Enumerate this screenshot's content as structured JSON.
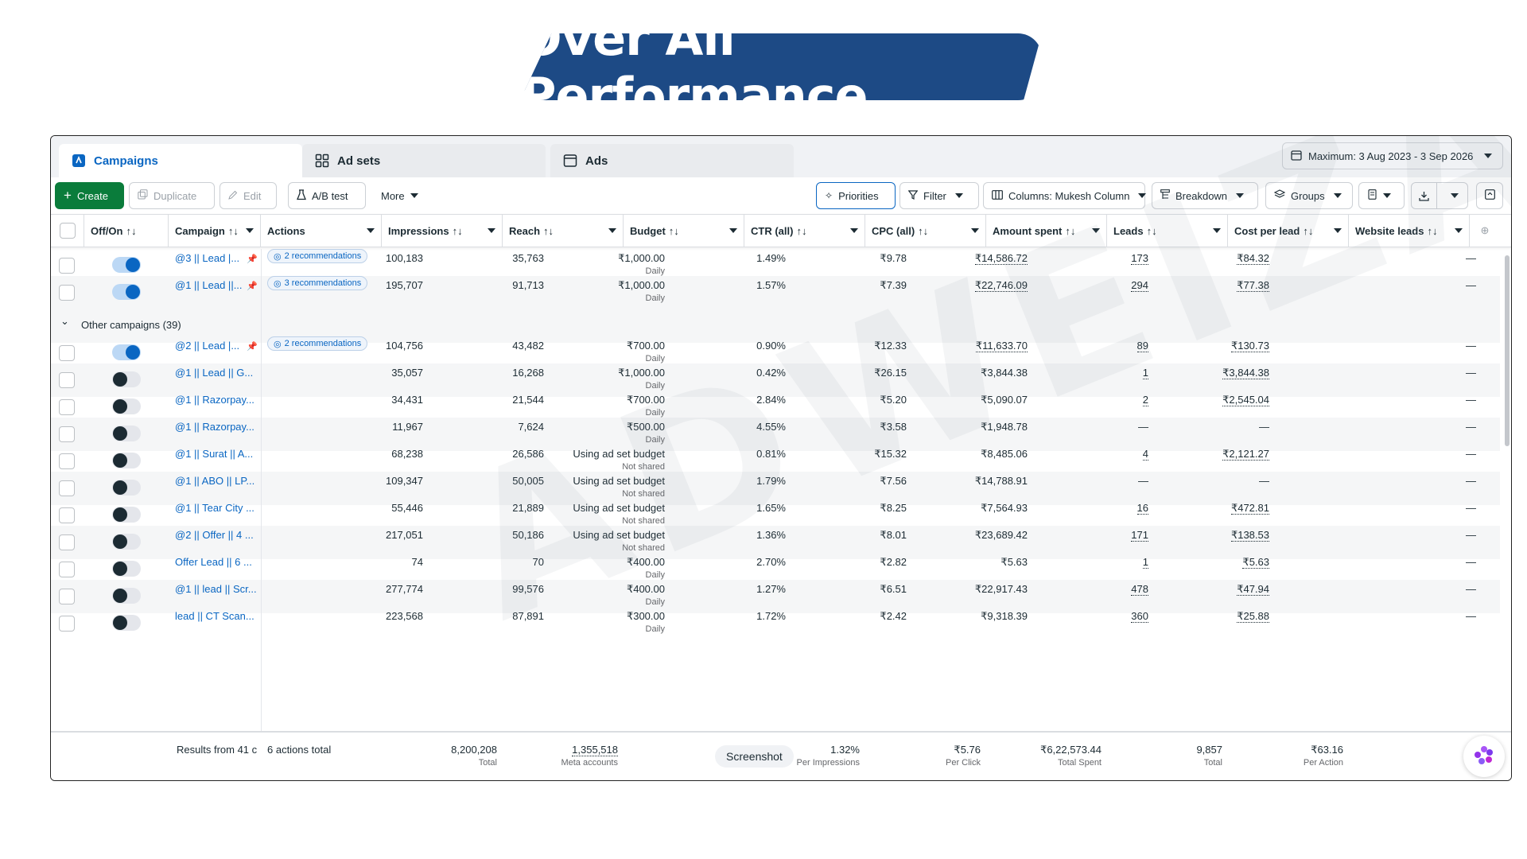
{
  "banner": {
    "title": "Over All Performance"
  },
  "watermark": {
    "text": "ADWEIZA"
  },
  "tabs": [
    {
      "label": "Campaigns",
      "icon": "campaigns-icon",
      "active": true
    },
    {
      "label": "Ad sets",
      "icon": "grid-icon",
      "active": false
    },
    {
      "label": "Ads",
      "icon": "ad-icon",
      "active": false
    }
  ],
  "date_range": {
    "label": "Maximum: 3 Aug 2023 - 3 Sep 2026"
  },
  "toolbar": {
    "create_label": "Create",
    "duplicate_label": "Duplicate",
    "edit_label": "Edit",
    "abtest_label": "A/B test",
    "more_label": "More",
    "priorities_label": "Priorities",
    "filter_label": "Filter",
    "columns_label": "Columns: Mukesh Column",
    "breakdown_label": "Breakdown",
    "groups_label": "Groups"
  },
  "columns": {
    "offon": "Off/On",
    "campaign": "Campaign",
    "actions": "Actions",
    "impressions": "Impressions",
    "reach": "Reach",
    "budget": "Budget",
    "ctr": "CTR (all)",
    "cpc": "CPC (all)",
    "amount_spent": "Amount spent",
    "leads": "Leads",
    "cost_per_lead": "Cost per lead",
    "website_leads": "Website leads"
  },
  "sort_glyph": "↑↓",
  "pinned_rows": [
    {
      "on": true,
      "campaign": "@3 || Lead |...",
      "actions": "2 recommendations",
      "impressions": "100,183",
      "reach": "35,763",
      "budget": "₹1,000.00",
      "budget_sub": "Daily",
      "ctr": "1.49%",
      "cpc": "₹9.78",
      "amount": "₹14,586.72",
      "leads": "173",
      "cpl": "₹84.32",
      "website_leads": "—"
    },
    {
      "on": true,
      "campaign": "@1 || Lead ||...",
      "actions": "3 recommendations",
      "impressions": "195,707",
      "reach": "91,713",
      "budget": "₹1,000.00",
      "budget_sub": "Daily",
      "ctr": "1.57%",
      "cpc": "₹7.39",
      "amount": "₹22,746.09",
      "leads": "294",
      "cpl": "₹77.38",
      "website_leads": "—"
    }
  ],
  "group": {
    "label": "Other campaigns (39)"
  },
  "rows": [
    {
      "on": true,
      "campaign": "@2 || Lead |...",
      "actions": "2 recommendations",
      "impressions": "104,756",
      "reach": "43,482",
      "budget": "₹700.00",
      "budget_sub": "Daily",
      "ctr": "0.90%",
      "cpc": "₹12.33",
      "amount": "₹11,633.70",
      "leads": "89",
      "cpl": "₹130.73",
      "website_leads": "—"
    },
    {
      "on": false,
      "campaign": "@1 || Lead || G...",
      "actions": "",
      "impressions": "35,057",
      "reach": "16,268",
      "budget": "₹1,000.00",
      "budget_sub": "Daily",
      "ctr": "0.42%",
      "cpc": "₹26.15",
      "amount": "₹3,844.38",
      "leads": "1",
      "cpl": "₹3,844.38",
      "website_leads": "—"
    },
    {
      "on": false,
      "campaign": "@1 || Razorpay...",
      "actions": "",
      "impressions": "34,431",
      "reach": "21,544",
      "budget": "₹700.00",
      "budget_sub": "Daily",
      "ctr": "2.84%",
      "cpc": "₹5.20",
      "amount": "₹5,090.07",
      "leads": "2",
      "cpl": "₹2,545.04",
      "website_leads": "—"
    },
    {
      "on": false,
      "campaign": "@1 || Razorpay...",
      "actions": "",
      "impressions": "11,967",
      "reach": "7,624",
      "budget": "₹500.00",
      "budget_sub": "Daily",
      "ctr": "4.55%",
      "cpc": "₹3.58",
      "amount": "₹1,948.78",
      "leads": "—",
      "cpl": "—",
      "website_leads": "—"
    },
    {
      "on": false,
      "campaign": "@1 || Surat || A...",
      "actions": "",
      "impressions": "68,238",
      "reach": "26,586",
      "budget": "Using ad set budget",
      "budget_sub": "Not shared",
      "ctr": "0.81%",
      "cpc": "₹15.32",
      "amount": "₹8,485.06",
      "leads": "4",
      "cpl": "₹2,121.27",
      "website_leads": "—"
    },
    {
      "on": false,
      "campaign": "@1 || ABO || LP...",
      "actions": "",
      "impressions": "109,347",
      "reach": "50,005",
      "budget": "Using ad set budget",
      "budget_sub": "Not shared",
      "ctr": "1.79%",
      "cpc": "₹7.56",
      "amount": "₹14,788.91",
      "leads": "—",
      "cpl": "—",
      "website_leads": "—"
    },
    {
      "on": false,
      "campaign": "@1 || Tear City ...",
      "actions": "",
      "impressions": "55,446",
      "reach": "21,889",
      "budget": "Using ad set budget",
      "budget_sub": "Not shared",
      "ctr": "1.65%",
      "cpc": "₹8.25",
      "amount": "₹7,564.93",
      "leads": "16",
      "cpl": "₹472.81",
      "website_leads": "—"
    },
    {
      "on": false,
      "campaign": "@2 || Offer || 4 ...",
      "actions": "",
      "impressions": "217,051",
      "reach": "50,186",
      "budget": "Using ad set budget",
      "budget_sub": "Not shared",
      "ctr": "1.36%",
      "cpc": "₹8.01",
      "amount": "₹23,689.42",
      "leads": "171",
      "cpl": "₹138.53",
      "website_leads": "—"
    },
    {
      "on": false,
      "campaign": "Offer Lead || 6 ...",
      "actions": "",
      "impressions": "74",
      "reach": "70",
      "budget": "₹400.00",
      "budget_sub": "Daily",
      "ctr": "2.70%",
      "cpc": "₹2.82",
      "amount": "₹5.63",
      "leads": "1",
      "cpl": "₹5.63",
      "website_leads": "—"
    },
    {
      "on": false,
      "campaign": "@1 || lead || Scr...",
      "actions": "",
      "impressions": "277,774",
      "reach": "99,576",
      "budget": "₹400.00",
      "budget_sub": "Daily",
      "ctr": "1.27%",
      "cpc": "₹6.51",
      "amount": "₹22,917.43",
      "leads": "478",
      "cpl": "₹47.94",
      "website_leads": "—"
    },
    {
      "on": false,
      "campaign": "lead || CT Scan...",
      "actions": "",
      "impressions": "223,568",
      "reach": "87,891",
      "budget": "₹300.00",
      "budget_sub": "Daily",
      "ctr": "1.72%",
      "cpc": "₹2.42",
      "amount": "₹9,318.39",
      "leads": "360",
      "cpl": "₹25.88",
      "website_leads": "—"
    }
  ],
  "footer": {
    "results": "Results from 41 c",
    "actions": "6 actions total",
    "impressions": "8,200,208",
    "impressions_sub": "Total",
    "reach": "1,355,518",
    "reach_sub": "Meta accounts",
    "screenshot_label": "Screenshot",
    "ctr": "1.32%",
    "ctr_sub": "Per Impressions",
    "cpc": "₹5.76",
    "cpc_sub": "Per Click",
    "amount": "₹6,22,573.44",
    "amount_sub": "Total Spent",
    "leads": "9,857",
    "leads_sub": "Total",
    "cpl": "₹63.16",
    "cpl_sub": "Per Action"
  }
}
